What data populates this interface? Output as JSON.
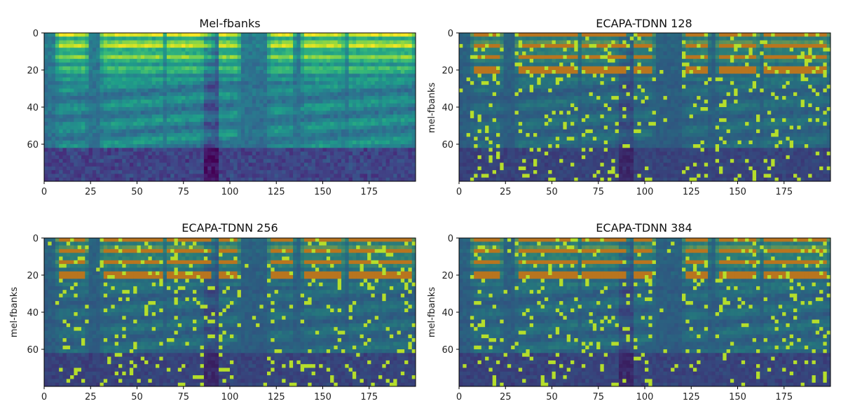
{
  "chart_data": [
    {
      "type": "heatmap",
      "title": "Mel-fbanks",
      "ylabel": "",
      "xlim": [
        0,
        200
      ],
      "ylim": [
        80,
        0
      ],
      "xticks": [
        0,
        25,
        50,
        75,
        100,
        125,
        150,
        175
      ],
      "yticks": [
        0,
        20,
        40,
        60
      ],
      "colormap": "viridis",
      "overlay": false,
      "highlight_density": 0
    },
    {
      "type": "heatmap",
      "title": "ECAPA-TDNN 128",
      "ylabel": "mel-fbanks",
      "xlim": [
        0,
        200
      ],
      "ylim": [
        80,
        0
      ],
      "xticks": [
        0,
        25,
        50,
        75,
        100,
        125,
        150,
        175
      ],
      "yticks": [
        0,
        20,
        40,
        60
      ],
      "colormap": "viridis (dimmed) with yellow-green saliency overlay",
      "overlay": true,
      "highlight_density": 0.05
    },
    {
      "type": "heatmap",
      "title": "ECAPA-TDNN 256",
      "ylabel": "mel-fbanks",
      "xlim": [
        0,
        200
      ],
      "ylim": [
        80,
        0
      ],
      "xticks": [
        0,
        25,
        50,
        75,
        100,
        125,
        150,
        175
      ],
      "yticks": [
        0,
        20,
        40,
        60
      ],
      "colormap": "viridis (dimmed) with yellow-green saliency overlay",
      "overlay": true,
      "highlight_density": 0.045
    },
    {
      "type": "heatmap",
      "title": "ECAPA-TDNN 384",
      "ylabel": "mel-fbanks",
      "xlim": [
        0,
        200
      ],
      "ylim": [
        80,
        0
      ],
      "xticks": [
        0,
        25,
        50,
        75,
        100,
        125,
        150,
        175
      ],
      "yticks": [
        0,
        20,
        40,
        60
      ],
      "colormap": "viridis (dimmed) with yellow-green saliency overlay",
      "overlay": true,
      "highlight_density": 0.045
    }
  ],
  "colors": {
    "viridis_low": "#440154",
    "viridis_mid": "#21918c",
    "viridis_high": "#fde725",
    "highlight": "#b5de2b",
    "overlay_warm": "#b8751f",
    "axis": "#000000"
  }
}
